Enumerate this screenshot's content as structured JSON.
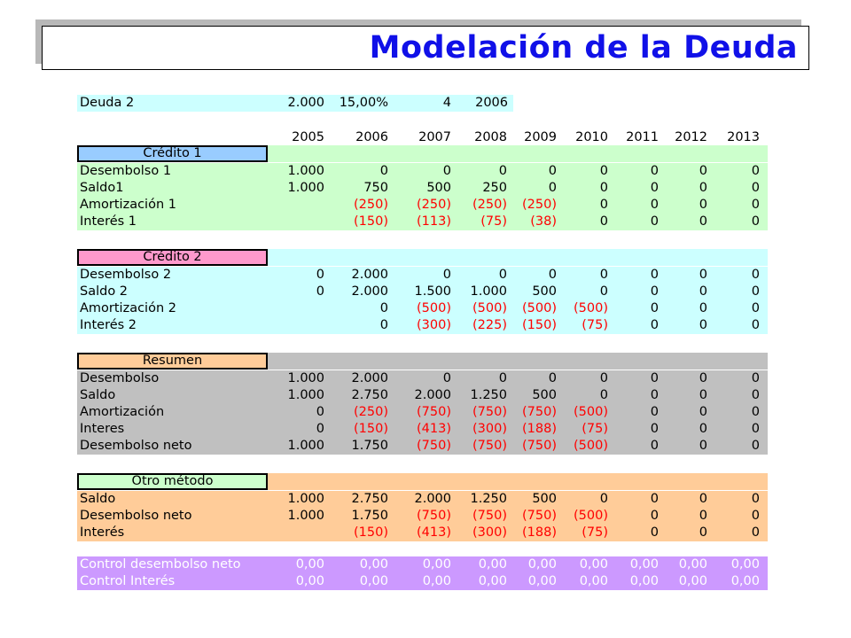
{
  "title": "Modelación de la Deuda",
  "colors": {
    "title_text": "#1010e8",
    "cyan": "#ccffff",
    "green": "#ccffcc",
    "gray": "#c0c0c0",
    "orange": "#ffcc99",
    "purple": "#cc99ff",
    "credito1_header": "#99ccff",
    "credito2_header": "#ff99cc",
    "resumen_header": "#ffcc99",
    "otro_header": "#ccffcc",
    "negative": "#ff0000"
  },
  "deuda_row": {
    "label": "Deuda 2",
    "monto": "2.000",
    "tasa": "15,00%",
    "plazo": "4",
    "anio": "2006"
  },
  "years": [
    "2005",
    "2006",
    "2007",
    "2008",
    "2009",
    "2010",
    "2011",
    "2012",
    "2013"
  ],
  "sections": [
    {
      "id": "credito1",
      "header": "Crédito 1",
      "rows": [
        {
          "label": "Desembolso 1",
          "values": [
            "1.000",
            "0",
            "0",
            "0",
            "0",
            "0",
            "0",
            "0",
            "0"
          ]
        },
        {
          "label": "Saldo1",
          "values": [
            "1.000",
            "750",
            "500",
            "250",
            "0",
            "0",
            "0",
            "0",
            "0"
          ]
        },
        {
          "label": "Amortización 1",
          "values": [
            "",
            "(250)",
            "(250)",
            "(250)",
            "(250)",
            "0",
            "0",
            "0",
            "0"
          ]
        },
        {
          "label": "Interés 1",
          "values": [
            "",
            "(150)",
            "(113)",
            "(75)",
            "(38)",
            "0",
            "0",
            "0",
            "0"
          ]
        }
      ]
    },
    {
      "id": "credito2",
      "header": "Crédito 2",
      "rows": [
        {
          "label": "Desembolso 2",
          "values": [
            "0",
            "2.000",
            "0",
            "0",
            "0",
            "0",
            "0",
            "0",
            "0"
          ]
        },
        {
          "label": "Saldo 2",
          "values": [
            "0",
            "2.000",
            "1.500",
            "1.000",
            "500",
            "0",
            "0",
            "0",
            "0"
          ]
        },
        {
          "label": "Amortización 2",
          "values": [
            "",
            "0",
            "(500)",
            "(500)",
            "(500)",
            "(500)",
            "0",
            "0",
            "0"
          ]
        },
        {
          "label": "Interés 2",
          "values": [
            "",
            "0",
            "(300)",
            "(225)",
            "(150)",
            "(75)",
            "0",
            "0",
            "0"
          ]
        }
      ]
    },
    {
      "id": "resumen",
      "header": "Resumen",
      "rows": [
        {
          "label": "Desembolso",
          "values": [
            "1.000",
            "2.000",
            "0",
            "0",
            "0",
            "0",
            "0",
            "0",
            "0"
          ]
        },
        {
          "label": "Saldo",
          "values": [
            "1.000",
            "2.750",
            "2.000",
            "1.250",
            "500",
            "0",
            "0",
            "0",
            "0"
          ]
        },
        {
          "label": "Amortización",
          "values": [
            "0",
            "(250)",
            "(750)",
            "(750)",
            "(750)",
            "(500)",
            "0",
            "0",
            "0"
          ]
        },
        {
          "label": "Interes",
          "values": [
            "0",
            "(150)",
            "(413)",
            "(300)",
            "(188)",
            "(75)",
            "0",
            "0",
            "0"
          ]
        },
        {
          "label": "Desembolso neto",
          "values": [
            "1.000",
            "1.750",
            "(750)",
            "(750)",
            "(750)",
            "(500)",
            "0",
            "0",
            "0"
          ]
        }
      ]
    },
    {
      "id": "otro",
      "header": "Otro método",
      "rows": [
        {
          "label": "Saldo",
          "values": [
            "1.000",
            "2.750",
            "2.000",
            "1.250",
            "500",
            "0",
            "0",
            "0",
            "0"
          ]
        },
        {
          "label": "Desembolso neto",
          "values": [
            "1.000",
            "1.750",
            "(750)",
            "(750)",
            "(750)",
            "(500)",
            "0",
            "0",
            "0"
          ]
        },
        {
          "label": "Interés",
          "values": [
            "",
            "(150)",
            "(413)",
            "(300)",
            "(188)",
            "(75)",
            "0",
            "0",
            "0"
          ]
        }
      ]
    },
    {
      "id": "control",
      "header": "",
      "rows": [
        {
          "label": "Control desembolso neto",
          "values": [
            "0,00",
            "0,00",
            "0,00",
            "0,00",
            "0,00",
            "0,00",
            "0,00",
            "0,00",
            "0,00"
          ]
        },
        {
          "label": "Control Interés",
          "values": [
            "0,00",
            "0,00",
            "0,00",
            "0,00",
            "0,00",
            "0,00",
            "0,00",
            "0,00",
            "0,00"
          ]
        }
      ]
    }
  ]
}
